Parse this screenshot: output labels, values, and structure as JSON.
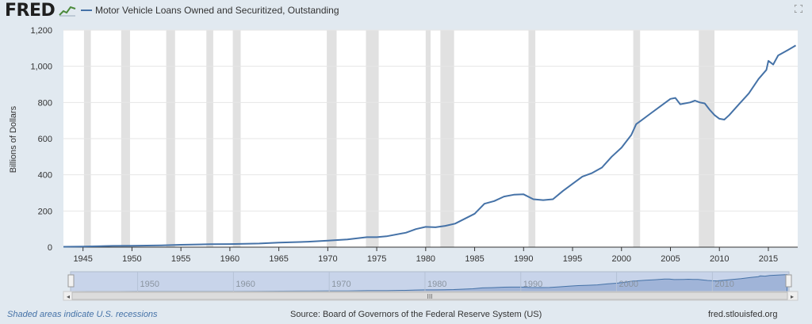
{
  "header": {
    "logo": "FRED",
    "series_title": "Motor Vehicle Loans Owned and Securitized, Outstanding"
  },
  "footer": {
    "note": "Shaded areas indicate U.S. recessions",
    "source": "Source: Board of Governors of the Federal Reserve System (US)",
    "site": "fred.stlouisfed.org"
  },
  "navigator": {
    "ticks": [
      "1950",
      "1960",
      "1970",
      "1980",
      "1990",
      "2000",
      "2010"
    ],
    "scroll_grip": "III"
  },
  "colors": {
    "line": "#4572a7",
    "recession": "#e1e1e1",
    "background": "#e1e9f0",
    "plot": "#ffffff"
  },
  "chart_data": {
    "type": "line",
    "title": "Motor Vehicle Loans Owned and Securitized, Outstanding",
    "ylabel": "Billions of Dollars",
    "xlabel": "",
    "xlim": [
      1943,
      2018
    ],
    "ylim": [
      0,
      1200
    ],
    "x_ticks": [
      1945,
      1950,
      1955,
      1960,
      1965,
      1970,
      1975,
      1980,
      1985,
      1990,
      1995,
      2000,
      2005,
      2010,
      2015
    ],
    "y_ticks": [
      0,
      200,
      400,
      600,
      800,
      1000,
      1200
    ],
    "y_tick_labels": [
      "0",
      "200",
      "400",
      "600",
      "800",
      "1,000",
      "1,200"
    ],
    "grid": "horizontal",
    "recessions": [
      [
        1945.1,
        1945.8
      ],
      [
        1948.9,
        1949.8
      ],
      [
        1953.5,
        1954.4
      ],
      [
        1957.6,
        1958.3
      ],
      [
        1960.3,
        1961.1
      ],
      [
        1969.9,
        1970.9
      ],
      [
        1973.9,
        1975.2
      ],
      [
        1980.0,
        1980.5
      ],
      [
        1981.5,
        1982.9
      ],
      [
        1990.5,
        1991.2
      ],
      [
        2001.2,
        2001.9
      ],
      [
        2007.9,
        2009.5
      ]
    ],
    "series": [
      {
        "x": [
          1943,
          1945,
          1948,
          1950,
          1953,
          1955,
          1958,
          1960,
          1963,
          1965,
          1968,
          1970,
          1972,
          1974,
          1975,
          1976,
          1978,
          1979,
          1980,
          1981,
          1982,
          1983,
          1985,
          1986,
          1987,
          1988,
          1989,
          1990,
          1991,
          1992,
          1993,
          1994,
          1995,
          1996,
          1997,
          1998,
          1999,
          2000,
          2001,
          2001.5,
          2002,
          2003,
          2004,
          2005,
          2005.5,
          2006,
          2007,
          2007.5,
          2008,
          2008.5,
          2009,
          2009.5,
          2010,
          2010.5,
          2011,
          2012,
          2013,
          2014,
          2014.8,
          2015,
          2015.5,
          2016,
          2017,
          2017.8
        ],
        "values": [
          2,
          3,
          7,
          8,
          10,
          13,
          16,
          17,
          20,
          25,
          30,
          36,
          43,
          55,
          55,
          60,
          80,
          100,
          112,
          110,
          118,
          130,
          185,
          240,
          255,
          280,
          290,
          292,
          265,
          260,
          265,
          310,
          350,
          390,
          410,
          440,
          500,
          550,
          620,
          680,
          700,
          740,
          780,
          820,
          825,
          790,
          800,
          810,
          800,
          795,
          760,
          730,
          710,
          705,
          730,
          790,
          850,
          930,
          980,
          1030,
          1010,
          1060,
          1090,
          1115
        ]
      }
    ]
  }
}
